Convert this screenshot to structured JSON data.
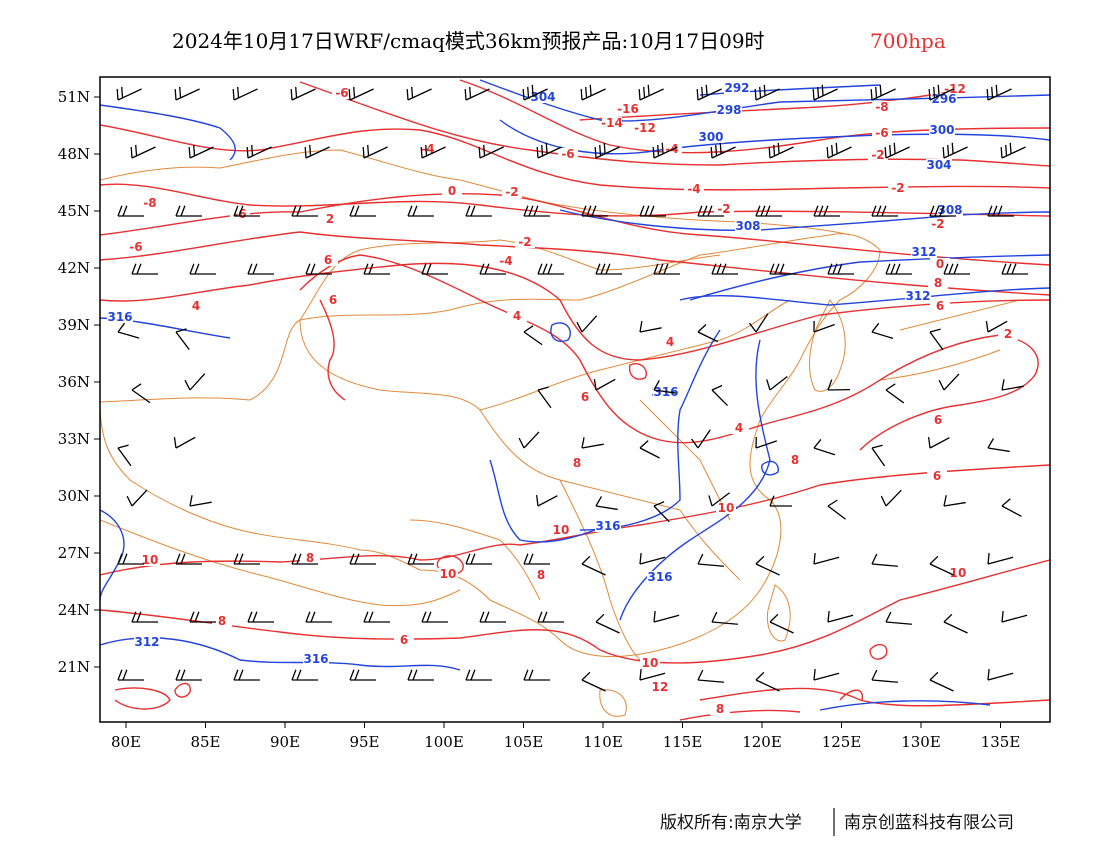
{
  "title": {
    "main": "2024年10月17日WRF/cmaq模式36km预报产品:10月17日09时",
    "level": "700hpa",
    "level_color": "#e83030"
  },
  "axes": {
    "lon_labels": [
      "80E",
      "85E",
      "90E",
      "95E",
      "100E",
      "105E",
      "110E",
      "115E",
      "120E",
      "125E",
      "130E",
      "135E"
    ],
    "lat_labels": [
      "51N",
      "48N",
      "45N",
      "42N",
      "39N",
      "36N",
      "33N",
      "30N",
      "27N",
      "24N",
      "21N"
    ]
  },
  "contours": {
    "temperature_color": "#e83030",
    "height_color": "#2244dd",
    "border_color": "#e08a3a",
    "barb_color": "#000000",
    "temperature_labels": [
      "-6",
      "-12",
      "-16",
      "-14",
      "-12",
      "-8",
      "-6",
      "-4",
      "-6",
      "-8",
      "-6",
      "-6",
      "-4",
      "-2",
      "-2",
      "0",
      "-2",
      "-4",
      "-2",
      "0",
      "-2",
      "-4",
      "-2",
      "2",
      "4",
      "6",
      "8",
      "4",
      "6",
      "6",
      "2",
      "4",
      "6",
      "4",
      "6",
      "8",
      "8",
      "6",
      "10",
      "10",
      "10",
      "12",
      "10",
      "8",
      "8",
      "6",
      "10",
      "10",
      "8",
      "12",
      "10",
      "8"
    ],
    "height_labels": [
      "304",
      "292",
      "300",
      "298",
      "300",
      "296",
      "304",
      "308",
      "308",
      "312",
      "316",
      "312",
      "312",
      "316",
      "316",
      "312",
      "316",
      "316"
    ]
  },
  "credit": {
    "left": "版权所有:南京大学",
    "right": "南京创蓝科技有限公司"
  }
}
